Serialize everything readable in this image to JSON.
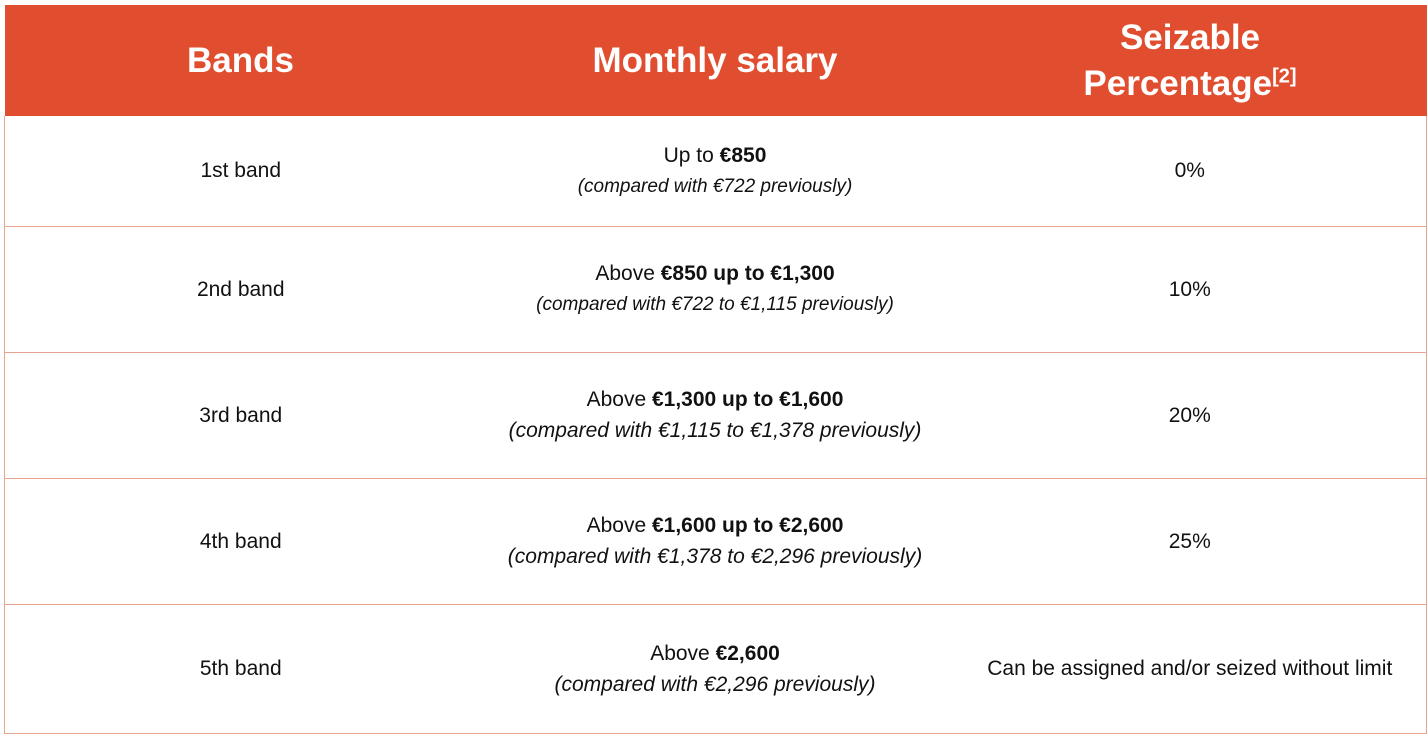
{
  "header": {
    "bands": "Bands",
    "monthly_salary": "Monthly salary",
    "seizable_line1": "Seizable",
    "seizable_line2": "Percentage",
    "seizable_note": "[2]"
  },
  "rows": [
    {
      "band": "1st band",
      "salary_prefix": "Up to ",
      "salary_bold": "€850",
      "salary_note": "(compared with €722 previously)",
      "percentage": "0%"
    },
    {
      "band": "2nd band",
      "salary_prefix": "Above ",
      "salary_bold": "€850 up to €1,300",
      "salary_note": "(compared with €722 to €1,115 previously)",
      "percentage": "10%"
    },
    {
      "band": "3rd band",
      "salary_prefix": "Above ",
      "salary_bold": "€1,300 up to €1,600",
      "salary_note": "(compared with €1,115 to €1,378 previously)",
      "percentage": "20%"
    },
    {
      "band": "4th band",
      "salary_prefix": "Above ",
      "salary_bold": "€1,600 up to €2,600",
      "salary_note": "(compared with €1,378 to €2,296 previously)",
      "percentage": "25%"
    },
    {
      "band": "5th band",
      "salary_prefix": "Above ",
      "salary_bold": "€2,600",
      "salary_note": "(compared with €2,296 previously)",
      "percentage": "Can be assigned and/or seized without limit"
    }
  ],
  "colors": {
    "header_background": "#e04e2f",
    "header_text": "#ffffff",
    "row_divider": "#e7a58f"
  }
}
